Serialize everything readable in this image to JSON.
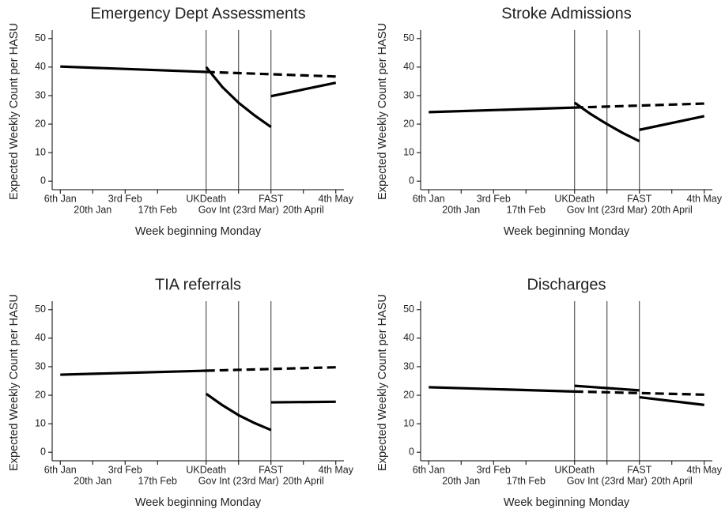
{
  "chart_data": [
    {
      "type": "line",
      "title": "Emergency Dept Assessments",
      "xlabel": "Week beginning Monday",
      "ylabel": "Expected Weekly Count per HASU",
      "xlim": [
        -0.5,
        17.5
      ],
      "ylim": [
        -3,
        53
      ],
      "xticks": [
        {
          "value": 0,
          "label": "6th Jan"
        },
        {
          "value": 2,
          "label": "20th Jan"
        },
        {
          "value": 4,
          "label": "3rd Feb"
        },
        {
          "value": 6,
          "label": "17th Feb"
        },
        {
          "value": 9,
          "label": "UKDeath"
        },
        {
          "value": 11,
          "label": "Gov Int (23rd Mar)"
        },
        {
          "value": 13,
          "label": "FAST"
        },
        {
          "value": 15,
          "label": "20th April"
        },
        {
          "value": 17,
          "label": "4th May"
        }
      ],
      "yticks": [
        0,
        10,
        20,
        30,
        40,
        50
      ],
      "vlines": [
        9,
        11,
        13
      ],
      "series": [
        {
          "style": "solid",
          "color": "#000000",
          "x": [
            0,
            9
          ],
          "values": [
            40.2,
            38.3
          ]
        },
        {
          "style": "dashed",
          "color": "#000000",
          "x": [
            9,
            17
          ],
          "values": [
            38.3,
            36.7
          ]
        },
        {
          "style": "solid",
          "color": "#000000",
          "x": [
            9,
            10,
            11,
            12,
            13
          ],
          "values": [
            40,
            33,
            27.5,
            23,
            19
          ]
        },
        {
          "style": "solid",
          "color": "#000000",
          "x": [
            13,
            17
          ],
          "values": [
            29.8,
            34.5
          ]
        }
      ]
    },
    {
      "type": "line",
      "title": "Stroke Admissions",
      "xlabel": "Week beginning Monday",
      "ylabel": "Expected Weekly Count per HASU",
      "xlim": [
        -0.5,
        17.5
      ],
      "ylim": [
        -3,
        53
      ],
      "xticks": [
        {
          "value": 0,
          "label": "6th Jan"
        },
        {
          "value": 2,
          "label": "20th Jan"
        },
        {
          "value": 4,
          "label": "3rd Feb"
        },
        {
          "value": 6,
          "label": "17th Feb"
        },
        {
          "value": 9,
          "label": "UKDeath"
        },
        {
          "value": 11,
          "label": "Gov Int (23rd Mar)"
        },
        {
          "value": 13,
          "label": "FAST"
        },
        {
          "value": 15,
          "label": "20th April"
        },
        {
          "value": 17,
          "label": "4th May"
        }
      ],
      "yticks": [
        0,
        10,
        20,
        30,
        40,
        50
      ],
      "vlines": [
        9,
        11,
        13
      ],
      "series": [
        {
          "style": "solid",
          "color": "#000000",
          "x": [
            0,
            9
          ],
          "values": [
            24.2,
            25.8
          ]
        },
        {
          "style": "dashed",
          "color": "#000000",
          "x": [
            9,
            17
          ],
          "values": [
            25.8,
            27.2
          ]
        },
        {
          "style": "solid",
          "color": "#000000",
          "x": [
            9,
            10,
            11,
            12,
            13
          ],
          "values": [
            27.5,
            23.5,
            20,
            16.8,
            14
          ]
        },
        {
          "style": "solid",
          "color": "#000000",
          "x": [
            13,
            17
          ],
          "values": [
            18,
            22.8
          ]
        }
      ]
    },
    {
      "type": "line",
      "title": "TIA referrals",
      "xlabel": "Week beginning Monday",
      "ylabel": "Expected Weekly Count per HASU",
      "xlim": [
        -0.5,
        17.5
      ],
      "ylim": [
        -3,
        53
      ],
      "xticks": [
        {
          "value": 0,
          "label": "6th Jan"
        },
        {
          "value": 2,
          "label": "20th Jan"
        },
        {
          "value": 4,
          "label": "3rd Feb"
        },
        {
          "value": 6,
          "label": "17th Feb"
        },
        {
          "value": 9,
          "label": "UKDeath"
        },
        {
          "value": 11,
          "label": "Gov Int (23rd Mar)"
        },
        {
          "value": 13,
          "label": "FAST"
        },
        {
          "value": 15,
          "label": "20th April"
        },
        {
          "value": 17,
          "label": "4th May"
        }
      ],
      "yticks": [
        0,
        10,
        20,
        30,
        40,
        50
      ],
      "vlines": [
        9,
        11,
        13
      ],
      "series": [
        {
          "style": "solid",
          "color": "#000000",
          "x": [
            0,
            9
          ],
          "values": [
            27.2,
            28.6
          ]
        },
        {
          "style": "dashed",
          "color": "#000000",
          "x": [
            9,
            17
          ],
          "values": [
            28.6,
            29.8
          ]
        },
        {
          "style": "solid",
          "color": "#000000",
          "x": [
            9,
            10,
            11,
            12,
            13
          ],
          "values": [
            20.5,
            16.5,
            13,
            10.2,
            7.8
          ]
        },
        {
          "style": "solid",
          "color": "#000000",
          "x": [
            13,
            17
          ],
          "values": [
            17.5,
            17.7
          ]
        }
      ]
    },
    {
      "type": "line",
      "title": "Discharges",
      "xlabel": "Week beginning Monday",
      "ylabel": "Expected Weekly Count per HASU",
      "xlim": [
        -0.5,
        17.5
      ],
      "ylim": [
        -3,
        53
      ],
      "xticks": [
        {
          "value": 0,
          "label": "6th Jan"
        },
        {
          "value": 2,
          "label": "20th Jan"
        },
        {
          "value": 4,
          "label": "3rd Feb"
        },
        {
          "value": 6,
          "label": "17th Feb"
        },
        {
          "value": 9,
          "label": "UKDeath"
        },
        {
          "value": 11,
          "label": "Gov Int (23rd Mar)"
        },
        {
          "value": 13,
          "label": "FAST"
        },
        {
          "value": 15,
          "label": "20th April"
        },
        {
          "value": 17,
          "label": "4th May"
        }
      ],
      "yticks": [
        0,
        10,
        20,
        30,
        40,
        50
      ],
      "vlines": [
        9,
        11,
        13
      ],
      "series": [
        {
          "style": "solid",
          "color": "#000000",
          "x": [
            0,
            9
          ],
          "values": [
            22.8,
            21.3
          ]
        },
        {
          "style": "dashed",
          "color": "#000000",
          "x": [
            9,
            17
          ],
          "values": [
            21.3,
            20.2
          ]
        },
        {
          "style": "solid",
          "color": "#000000",
          "x": [
            9,
            10,
            11,
            12,
            13
          ],
          "values": [
            23.3,
            22.9,
            22.5,
            22.1,
            21.7
          ]
        },
        {
          "style": "solid",
          "color": "#000000",
          "x": [
            13,
            17
          ],
          "values": [
            19.3,
            16.6
          ]
        }
      ]
    }
  ]
}
